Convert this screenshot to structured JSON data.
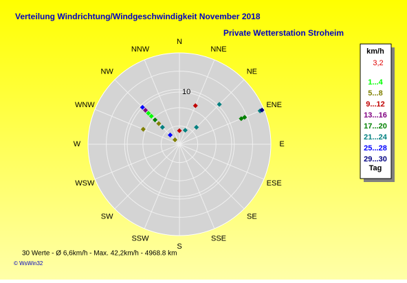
{
  "chart_data": {
    "type": "polar-scatter",
    "title": "Verteilung Windrichtung/Windgeschwindigkeit  November 2018",
    "subtitle": "Private Wetterstation Stroheim",
    "categories": [
      "N",
      "NNE",
      "NE",
      "ENE",
      "E",
      "ESE",
      "SE",
      "SSE",
      "S",
      "SSW",
      "SW",
      "WSW",
      "W",
      "WNW",
      "NW",
      "NNW"
    ],
    "rlim": [
      0,
      17.5
    ],
    "rticks": [
      10
    ],
    "legend_title": "km/h",
    "current_value": "3,2",
    "legend_footer": "Tag",
    "series": [
      {
        "name": "1...4",
        "color": "#00ff00",
        "directions": [
          "NW",
          "NW"
        ],
        "values": [
          8.4,
          7.6
        ]
      },
      {
        "name": "5...8",
        "color": "#808000",
        "directions": [
          "NW",
          "NW",
          "WNW"
        ],
        "values": [
          5.6,
          1.2,
          7.5
        ]
      },
      {
        "name": "9...12",
        "color": "#c00000",
        "directions": [
          "NNE",
          "N"
        ],
        "values": [
          8.0,
          2.6
        ]
      },
      {
        "name": "13...16",
        "color": "#800080",
        "directions": [
          "NW"
        ],
        "values": [
          9.2
        ]
      },
      {
        "name": "17...20",
        "color": "#008000",
        "directions": [
          "NW",
          "ENE",
          "ENE"
        ],
        "values": [
          6.6,
          13.5,
          12.8
        ]
      },
      {
        "name": "21...24",
        "color": "#008080",
        "directions": [
          "NW",
          "NNE",
          "NE",
          "NE",
          "ENE"
        ],
        "values": [
          4.6,
          2.9,
          10.8,
          4.6,
          16.7
        ]
      },
      {
        "name": "25...28",
        "color": "#0000ff",
        "directions": [
          "NW",
          "NW"
        ],
        "values": [
          10.0,
          2.5
        ]
      },
      {
        "name": "29...30",
        "color": "#000080",
        "directions": [
          "ENE"
        ],
        "values": [
          17.1
        ]
      }
    ],
    "footer": "30 Werte   -   Ø 6,6km/h  -  Max. 42,2km/h  -   4968.8 km",
    "credit": "© WsWin32"
  }
}
